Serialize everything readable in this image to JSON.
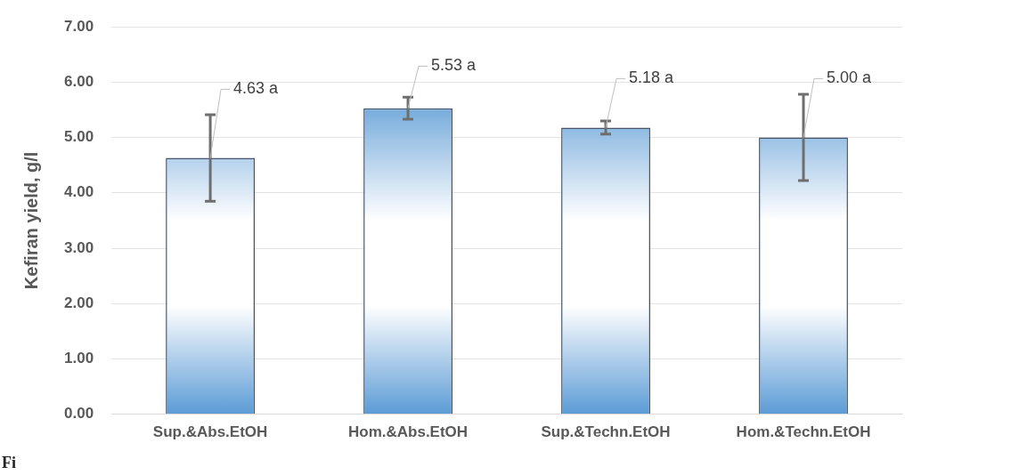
{
  "chart_data": {
    "type": "bar",
    "ylabel": "Kefiran yield, g/l",
    "categories": [
      "Sup.&Abs.EtOH",
      "Hom.&Abs.EtOH",
      "Sup.&Techn.EtOH",
      "Hom.&Techn.EtOH"
    ],
    "values": [
      4.63,
      5.53,
      5.18,
      5.0
    ],
    "errors": [
      0.78,
      0.2,
      0.12,
      0.78
    ],
    "value_labels": [
      "4.63 a",
      "5.53 a",
      "5.18 a",
      "5.00 a"
    ],
    "color": "#5b9bd5",
    "ylim": [
      0,
      7
    ],
    "yticks": [
      {
        "value": 0,
        "label": "0.00"
      },
      {
        "value": 1,
        "label": "1.00"
      },
      {
        "value": 2,
        "label": "2.00"
      },
      {
        "value": 3,
        "label": "3.00"
      },
      {
        "value": 4,
        "label": "4.00"
      },
      {
        "value": 5,
        "label": "5.00"
      },
      {
        "value": 6,
        "label": "6.00"
      },
      {
        "value": 7,
        "label": "7.00"
      }
    ],
    "grid": "y",
    "legend": false,
    "annotations": [
      "Fi"
    ]
  }
}
